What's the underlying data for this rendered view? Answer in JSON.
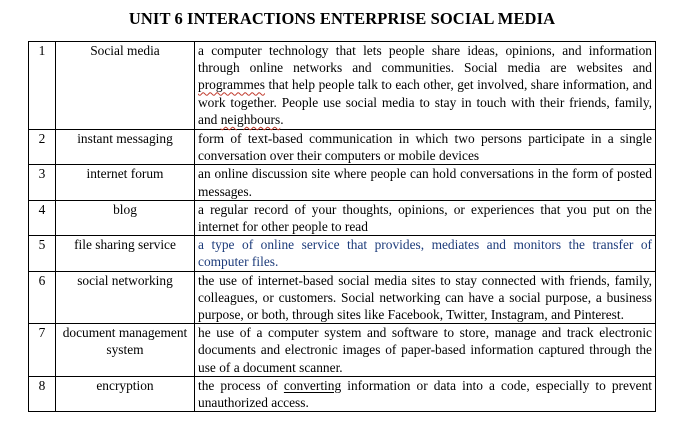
{
  "title": "UNIT 6 INTERACTIONS ENTERPRISE SOCIAL MEDIA",
  "rows": [
    {
      "num": "1",
      "term": "Social media",
      "def": [
        "a computer technology that lets people share ideas, opinions, and information through online networks and communities. Social media are websites and ",
        "programmes",
        " that help people talk to each other, get involved, share information, and work together. People use social media to stay in touch with their friends, family, and ",
        "neighbours",
        "."
      ]
    },
    {
      "num": "2",
      "term": "instant messaging",
      "def": "form of text-based communication in which two persons participate in a single conversation over their computers or mobile devices"
    },
    {
      "num": "3",
      "term": "internet forum",
      "def": "an online discussion site where people can hold conversations in the form of posted messages."
    },
    {
      "num": "4",
      "term": "blog",
      "def": "a regular record of your thoughts, opinions, or experiences that you put on the internet for other people to read"
    },
    {
      "num": "5",
      "term": "file sharing service",
      "def": "a type of online service that provides, mediates and monitors the transfer of computer files."
    },
    {
      "num": "6",
      "term": "social networking",
      "def": "the use of internet-based social media sites to stay connected with friends, family, colleagues, or customers. Social networking can have a social purpose, a business purpose, or both, through sites like Facebook, Twitter, Instagram, and Pinterest."
    },
    {
      "num": "7",
      "term": "document management system",
      "def": "he use of a computer system and software to store, manage and track electronic documents and electronic images of paper-based information captured through the use of a document scanner."
    },
    {
      "num": "8",
      "term": "encryption",
      "def": [
        "the process of ",
        "converting",
        " information or data into a code, especially to prevent unauthorized access."
      ]
    }
  ]
}
